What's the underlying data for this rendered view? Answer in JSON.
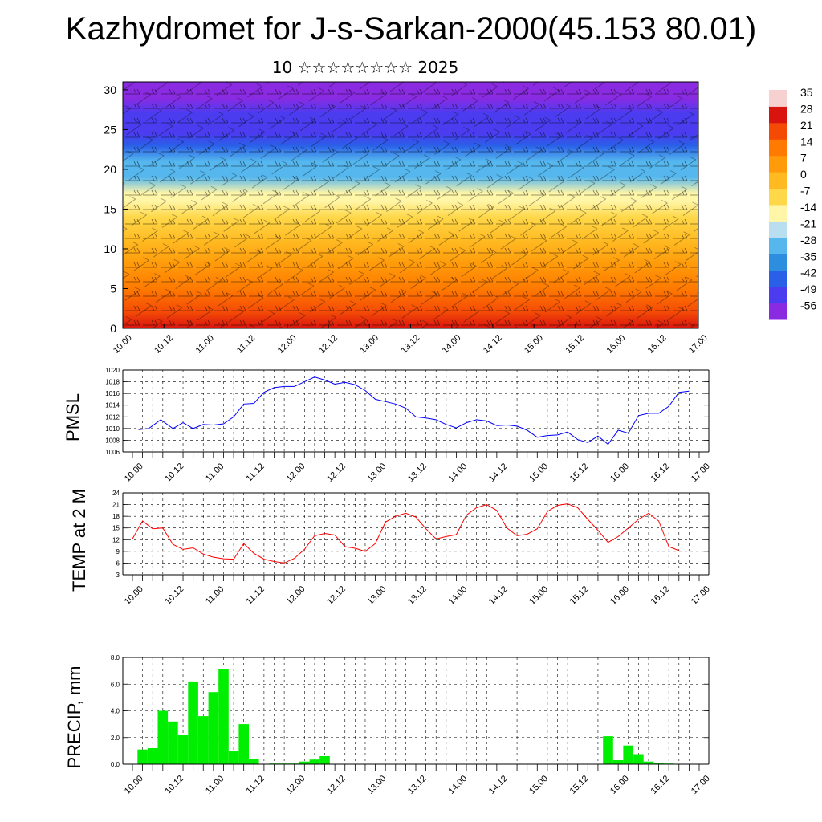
{
  "header": {
    "title": "Kazhydromet for J-s-Sarkan-2000(45.153 80.01)",
    "subtitle": "10 ☆☆☆☆☆☆☆☆ 2025"
  },
  "time_ticks": [
    "10.00",
    "10.12",
    "11.00",
    "11.12",
    "12.00",
    "12.12",
    "13.00",
    "13.12",
    "14.00",
    "14.12",
    "15.00",
    "15.12",
    "16.00",
    "16.12",
    "17.00"
  ],
  "chart_data": [
    {
      "id": "cross-section",
      "type": "heatmap",
      "xlabel": "",
      "ylabel": "",
      "x_ticks": [
        "10.00",
        "10.12",
        "11.00",
        "11.12",
        "12.00",
        "12.12",
        "13.00",
        "13.12",
        "14.00",
        "14.12",
        "15.00",
        "15.12",
        "16.00",
        "16.12",
        "17.00"
      ],
      "y_ticks": [
        0,
        5,
        10,
        15,
        20,
        25,
        30
      ],
      "ylim": [
        0,
        31
      ],
      "colorbar_labels": [
        "35",
        "28",
        "21",
        "14",
        "7",
        "0",
        "-7",
        "-14",
        "-21",
        "-28",
        "-35",
        "-42",
        "-49",
        "-56"
      ],
      "colorbar_range": [
        -60,
        38
      ],
      "colorbar_colors": [
        "#8a2be2",
        "#4b3cf0",
        "#2a5fe8",
        "#2d8ee0",
        "#55b7ee",
        "#b9def0",
        "#fff6a8",
        "#ffd84a",
        "#ffba22",
        "#ff9a0a",
        "#ff7a00",
        "#f44a06",
        "#d9140f",
        "#f7d0d0"
      ],
      "temperature_by_height": [
        {
          "height": 0,
          "value": 24
        },
        {
          "height": 2,
          "value": 20
        },
        {
          "height": 5,
          "value": 14
        },
        {
          "height": 8,
          "value": 8
        },
        {
          "height": 11,
          "value": 2
        },
        {
          "height": 14,
          "value": -8
        },
        {
          "height": 16,
          "value": -14
        },
        {
          "height": 17,
          "value": -17
        },
        {
          "height": 19,
          "value": -26
        },
        {
          "height": 21,
          "value": -32
        },
        {
          "height": 23,
          "value": -40
        },
        {
          "height": 24.5,
          "value": -49
        },
        {
          "height": 25.5,
          "value": -52
        },
        {
          "height": 27,
          "value": -47
        },
        {
          "height": 29,
          "value": -55
        },
        {
          "height": 31,
          "value": -58
        }
      ],
      "overlay": "wind barbs"
    },
    {
      "id": "pmsl",
      "type": "line",
      "ylabel": "PMSL",
      "x_ticks": [
        "10.00",
        "10.12",
        "11.00",
        "11.12",
        "12.00",
        "12.12",
        "13.00",
        "13.12",
        "14.00",
        "14.12",
        "15.00",
        "15.12",
        "16.00",
        "16.12",
        "17.00"
      ],
      "y_ticks": [
        "1006",
        "1008",
        "1010",
        "1012",
        "1014",
        "1016",
        "1018",
        "1020"
      ],
      "ylim": [
        1006,
        1020
      ],
      "color": "#0000ff",
      "x": [
        0.15,
        0.4,
        0.7,
        1,
        1.25,
        1.5,
        1.75,
        2,
        2.25,
        2.5,
        2.75,
        3,
        3.25,
        3.5,
        3.75,
        4,
        4.25,
        4.5,
        4.75,
        5,
        5.25,
        5.5,
        5.75,
        6,
        6.25,
        6.5,
        6.75,
        7,
        7.25,
        7.5,
        7.75,
        8,
        8.25,
        8.5,
        8.75,
        9,
        9.25,
        9.5,
        9.75,
        10,
        10.25,
        10.5,
        10.75,
        11,
        11.25,
        11.5,
        11.75,
        12,
        12.25,
        12.5,
        12.75,
        13,
        13.25,
        13.5,
        13.75
      ],
      "values": [
        1009.8,
        1010,
        1011.5,
        1010,
        1011,
        1010,
        1010.7,
        1010.6,
        1010.8,
        1012,
        1014.2,
        1014.3,
        1016.2,
        1017,
        1017.2,
        1017.2,
        1018,
        1018.8,
        1018.3,
        1017.6,
        1017.9,
        1017.5,
        1016.5,
        1015,
        1014.6,
        1014.2,
        1013.5,
        1012,
        1011.8,
        1011.5,
        1010.7,
        1010.1,
        1011,
        1011.5,
        1011.3,
        1010.5,
        1010.6,
        1010.4,
        1009.7,
        1008.5,
        1008.8,
        1008.9,
        1009.4,
        1008.1,
        1007.6,
        1008.7,
        1007.3,
        1009.7,
        1009.2,
        1012.2,
        1012.6,
        1012.6,
        1013.8,
        1016.2,
        1016.4
      ]
    },
    {
      "id": "temp2m",
      "type": "line",
      "ylabel": "TEMP at 2 M",
      "x_ticks": [
        "10.00",
        "10.12",
        "11.00",
        "11.12",
        "12.00",
        "12.12",
        "13.00",
        "13.12",
        "14.00",
        "14.12",
        "15.00",
        "15.12",
        "16.00",
        "16.12",
        "17.00"
      ],
      "y_ticks": [
        "3",
        "6",
        "9",
        "12",
        "15",
        "18",
        "21",
        "24"
      ],
      "ylim": [
        3,
        24
      ],
      "color": "#ff0000",
      "x": [
        0,
        0.25,
        0.5,
        0.75,
        1,
        1.25,
        1.5,
        1.75,
        2,
        2.25,
        2.5,
        2.75,
        3,
        3.25,
        3.5,
        3.75,
        4,
        4.25,
        4.5,
        4.75,
        5,
        5.25,
        5.5,
        5.75,
        6,
        6.25,
        6.5,
        6.75,
        7,
        7.25,
        7.5,
        7.75,
        8,
        8.25,
        8.5,
        8.75,
        9,
        9.25,
        9.5,
        9.75,
        10,
        10.25,
        10.5,
        10.75,
        11,
        11.25,
        11.5,
        11.75,
        12,
        12.25,
        12.5,
        12.75,
        13,
        13.25,
        13.5
      ],
      "values": [
        12.2,
        16.8,
        14.8,
        15,
        10.8,
        9.5,
        9.9,
        8.3,
        7.5,
        7.1,
        7,
        11,
        8.5,
        7,
        6.4,
        6,
        7.2,
        9.5,
        13,
        13.6,
        13.2,
        10.2,
        9.8,
        9,
        11,
        16.5,
        18,
        18.8,
        17.8,
        14.8,
        12.2,
        12.8,
        13.3,
        18.3,
        20.2,
        21,
        19.5,
        15,
        13,
        13.4,
        14.8,
        19.2,
        20.8,
        21.2,
        20.2,
        17.2,
        14.4,
        11.3,
        12.8,
        15,
        17.2,
        18.8,
        16.8,
        10.2,
        9.2
      ]
    },
    {
      "id": "precip",
      "type": "bar",
      "ylabel": "PRECIP, mm",
      "x_ticks": [
        "10.00",
        "10.12",
        "11.00",
        "11.12",
        "12.00",
        "12.12",
        "13.00",
        "13.12",
        "14.00",
        "14.12",
        "15.00",
        "15.12",
        "16.00",
        "16.12",
        "17.00"
      ],
      "y_ticks": [
        "0.0",
        "2.0",
        "4.0",
        "6.0",
        "8.0"
      ],
      "ylim": [
        0,
        8
      ],
      "color": "#00ee00",
      "x": [
        0.25,
        0.5,
        0.75,
        1,
        1.25,
        1.5,
        1.75,
        2,
        2.25,
        2.5,
        2.75,
        3,
        3.25,
        3.5,
        3.75,
        4,
        4.25,
        4.5,
        4.75,
        5,
        5.25,
        11.75,
        12,
        12.25,
        12.5,
        12.75,
        13,
        13.25
      ],
      "values": [
        1.1,
        1.2,
        4.0,
        3.2,
        2.2,
        6.2,
        3.6,
        5.4,
        7.1,
        1.0,
        3.0,
        0.4,
        0,
        0.05,
        0.05,
        0.05,
        0.2,
        0.35,
        0.6,
        0,
        0,
        2.1,
        0.3,
        1.4,
        0.75,
        0.2,
        0.1,
        0.05
      ]
    }
  ]
}
